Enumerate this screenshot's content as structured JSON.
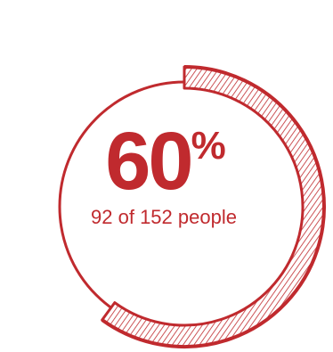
{
  "chart_data": {
    "type": "pie",
    "subtype": "donut-progress",
    "value_percent": 60,
    "count": 92,
    "total": 152,
    "value_label": "60",
    "symbol_label": "%",
    "sub_label": "92 of 152 people",
    "colors": {
      "primary": "#c02a2e",
      "hatch": "#c02a2e",
      "background": "#ffffff"
    }
  }
}
